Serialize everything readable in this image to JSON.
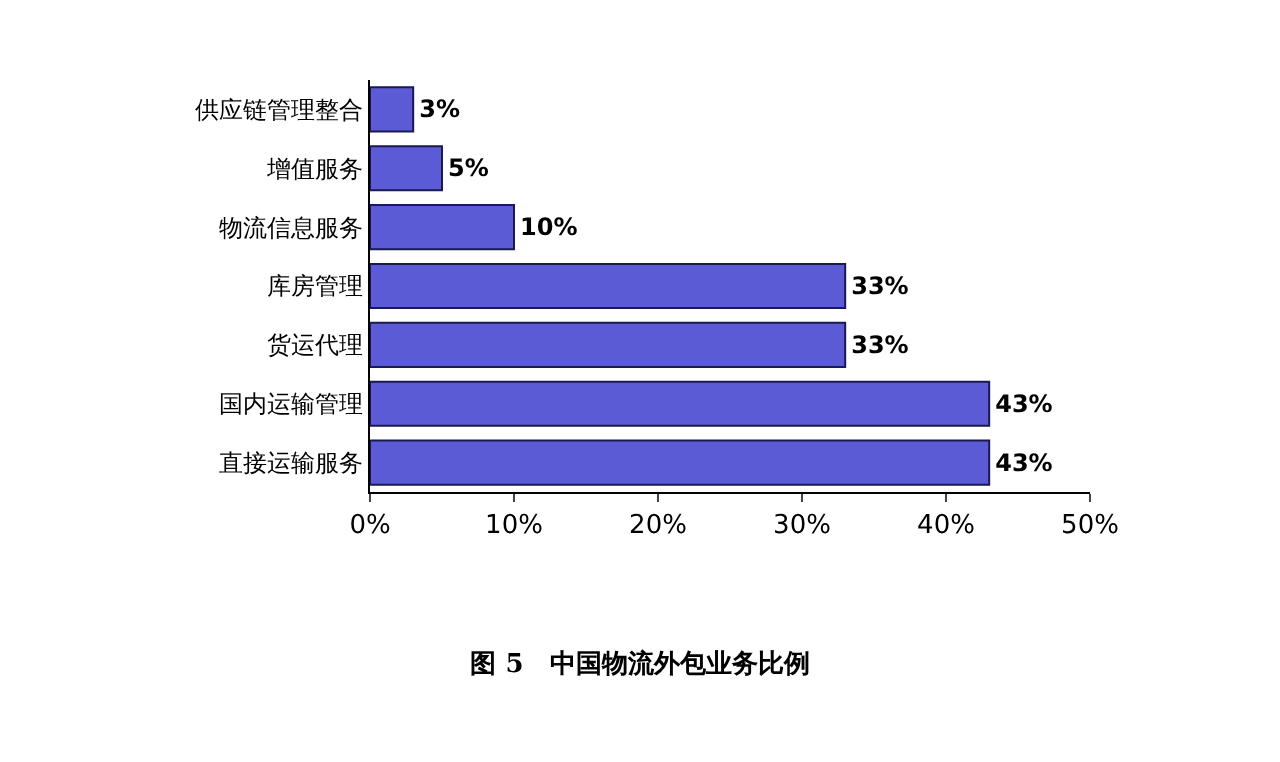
{
  "chart_data": {
    "type": "bar",
    "orientation": "horizontal",
    "title": "图 5　中国物流外包业务比例",
    "categories": [
      "供应链管理整合",
      "增值服务",
      "物流信息服务",
      "库房管理",
      "货运代理",
      "国内运输管理",
      "直接运输服务"
    ],
    "values": [
      3,
      5,
      10,
      33,
      33,
      43,
      43
    ],
    "value_labels": [
      "3%",
      "5%",
      "10%",
      "33%",
      "33%",
      "43%",
      "43%"
    ],
    "color": "#5b5bd6",
    "xlim": [
      0,
      50
    ],
    "xticks": [
      {
        "value": 0,
        "label": "0%"
      },
      {
        "value": 10,
        "label": "10%"
      },
      {
        "value": 20,
        "label": "20%"
      },
      {
        "value": 30,
        "label": "30%"
      },
      {
        "value": 40,
        "label": "40%"
      },
      {
        "value": 50,
        "label": "50%"
      }
    ],
    "grid": false
  }
}
